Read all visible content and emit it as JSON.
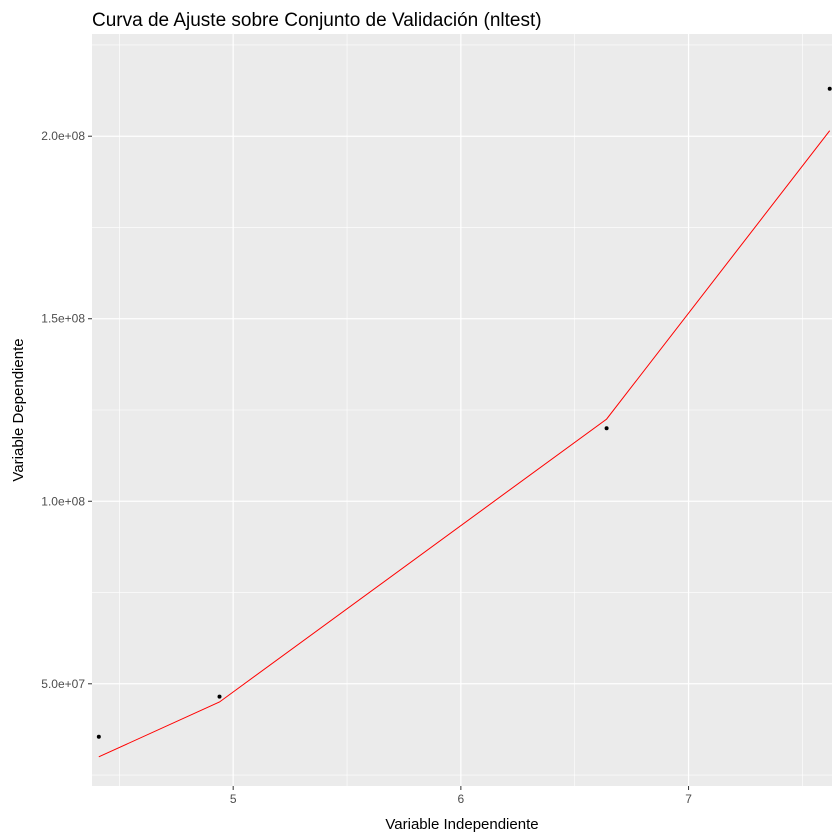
{
  "chart_data": {
    "type": "scatter",
    "title": "Curva de Ajuste sobre Conjunto de Validación (nltest)",
    "xlabel": "Variable Independiente",
    "ylabel": "Variable Dependiente",
    "xlim": [
      4.38,
      7.63
    ],
    "ylim": [
      22000000,
      228000000
    ],
    "x_ticks": [
      5,
      6,
      7
    ],
    "x_tick_labels": [
      "5",
      "6",
      "7"
    ],
    "x_minor_ticks": [
      4.5,
      5.5,
      6.5,
      7.5
    ],
    "y_ticks": [
      50000000,
      100000000,
      150000000,
      200000000
    ],
    "y_tick_labels": [
      "5.0e+07",
      "1.0e+08",
      "1.5e+08",
      "2.0e+08"
    ],
    "y_minor_ticks": [
      25000000,
      75000000,
      125000000,
      175000000,
      225000000
    ],
    "grid": true,
    "points": {
      "name": "",
      "x": [
        4.41,
        4.94,
        6.64,
        7.62
      ],
      "y": [
        35500000,
        46500000,
        120000000,
        213000000
      ],
      "color": "#000000"
    },
    "fit_line": {
      "name": "",
      "x": [
        4.41,
        4.94,
        6.64,
        7.62
      ],
      "y": [
        30000000,
        45000000,
        122500000,
        201500000
      ],
      "color": "#ff0000"
    },
    "panel_background": "#ebebeb",
    "grid_color": "#ffffff"
  }
}
